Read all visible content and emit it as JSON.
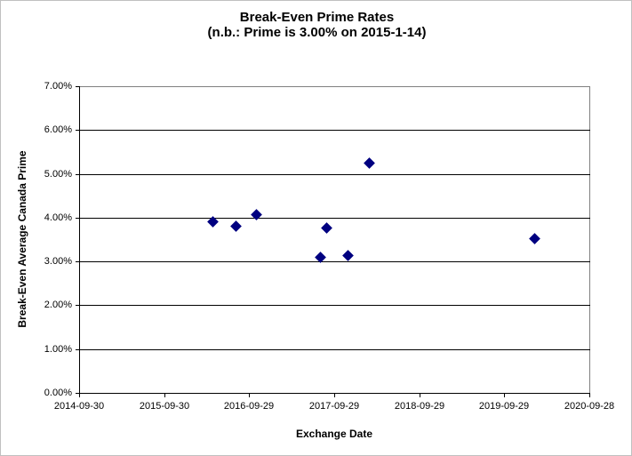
{
  "chart": {
    "title": "Break-Even Prime Rates",
    "subtitle": "(n.b.: Prime is 3.00% on 2015-1-14)",
    "xlabel": "Exchange Date",
    "ylabel": "Break-Even Average Canada Prime"
  },
  "colors": {
    "marker": "#000080",
    "gridline": "#000000",
    "axis": "#000000",
    "plot_border": "#808080",
    "background": "#ffffff",
    "text": "#000000"
  },
  "chart_data": {
    "type": "scatter",
    "title": "Break-Even Prime Rates",
    "subtitle": "(n.b.: Prime is 3.00% on 2015-1-14)",
    "xlabel": "Exchange Date",
    "ylabel": "Break-Even Average Canada Prime",
    "xlim": [
      "2014-09-30",
      "2020-09-28"
    ],
    "ylim": [
      0,
      7
    ],
    "x_ticks": [
      "2014-09-30",
      "2015-09-30",
      "2016-09-29",
      "2017-09-29",
      "2018-09-29",
      "2019-09-29",
      "2020-09-28"
    ],
    "y_ticks": [
      "0.00%",
      "1.00%",
      "2.00%",
      "3.00%",
      "4.00%",
      "5.00%",
      "6.00%",
      "7.00%"
    ],
    "y_tick_values": [
      0,
      1,
      2,
      3,
      4,
      5,
      6,
      7
    ],
    "grid": "horizontal-only",
    "legend": "none",
    "marker_shape": "diamond",
    "series": [
      {
        "name": "Break-Even Prime Rate",
        "points": [
          {
            "x": "2016-04-28",
            "y": 3.9
          },
          {
            "x": "2016-08-02",
            "y": 3.8
          },
          {
            "x": "2016-11-01",
            "y": 4.07
          },
          {
            "x": "2017-07-30",
            "y": 3.1
          },
          {
            "x": "2017-08-29",
            "y": 3.77
          },
          {
            "x": "2017-11-27",
            "y": 3.13
          },
          {
            "x": "2018-02-27",
            "y": 5.25
          },
          {
            "x": "2020-02-08",
            "y": 3.52
          }
        ]
      }
    ]
  }
}
